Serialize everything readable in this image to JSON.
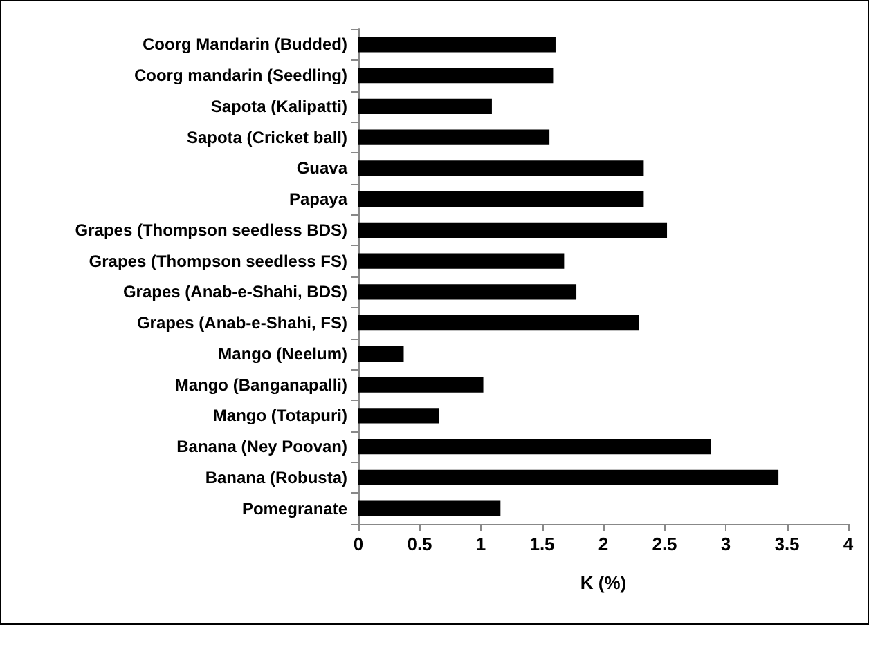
{
  "chart_data": {
    "type": "bar",
    "orientation": "horizontal",
    "xlabel": "K (%)",
    "categories": [
      "Coorg Mandarin (Budded)",
      "Coorg mandarin (Seedling)",
      "Sapota (Kalipatti)",
      "Sapota (Cricket ball)",
      "Guava",
      "Papaya",
      "Grapes (Thompson seedless BDS)",
      "Grapes (Thompson seedless FS)",
      "Grapes (Anab-e-Shahi, BDS)",
      "Grapes (Anab-e-Shahi, FS)",
      "Mango (Neelum)",
      "Mango (Banganapalli)",
      "Mango (Totapuri)",
      "Banana (Ney Poovan)",
      "Banana (Robusta)",
      "Pomegranate"
    ],
    "values": [
      1.61,
      1.59,
      1.09,
      1.56,
      2.33,
      2.33,
      2.52,
      1.68,
      1.78,
      2.29,
      0.37,
      1.02,
      0.66,
      2.88,
      3.43,
      1.16
    ],
    "color": "#000000",
    "xlim": [
      0,
      4
    ],
    "xticks": [
      0,
      0.5,
      1,
      1.5,
      2,
      2.5,
      3,
      3.5,
      4
    ],
    "grid": false
  }
}
